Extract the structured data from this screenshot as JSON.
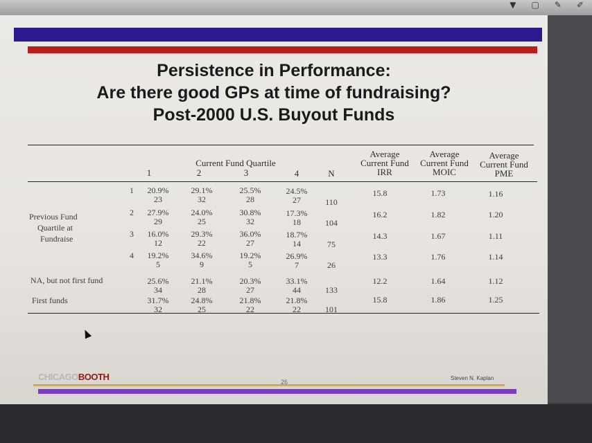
{
  "title": {
    "line1": "Persistence in Performance:",
    "line2": "Are there good GPs at time of fundraising?",
    "line3": "Post-2000 U.S. Buyout Funds"
  },
  "header": {
    "current_fund_quartile": "Current Fund Quartile",
    "q1": "1",
    "q2": "2",
    "q3": "3",
    "q4": "4",
    "n": "N",
    "irr": [
      "Average",
      "Current Fund",
      "IRR"
    ],
    "moic": [
      "Average",
      "Current Fund",
      "MOIC"
    ],
    "pme": [
      "Average",
      "Current Fund",
      "PME"
    ]
  },
  "row_group_label": [
    "Previous Fund",
    "Quartile at",
    "Fundraise"
  ],
  "rows": [
    {
      "label": "1",
      "q": [
        "20.9%",
        "29.1%",
        "25.5%",
        "24.5%"
      ],
      "counts": [
        "23",
        "32",
        "28",
        "27"
      ],
      "n": "110",
      "irr": "15.8",
      "moic": "1.73",
      "pme": "1.16"
    },
    {
      "label": "2",
      "q": [
        "27.9%",
        "24.0%",
        "30.8%",
        "17.3%"
      ],
      "counts": [
        "29",
        "25",
        "32",
        "18"
      ],
      "n": "104",
      "irr": "16.2",
      "moic": "1.82",
      "pme": "1.20"
    },
    {
      "label": "3",
      "q": [
        "16.0%",
        "29.3%",
        "36.0%",
        "18.7%"
      ],
      "counts": [
        "12",
        "22",
        "27",
        "14"
      ],
      "n": "75",
      "irr": "14.3",
      "moic": "1.67",
      "pme": "1.11"
    },
    {
      "label": "4",
      "q": [
        "19.2%",
        "34.6%",
        "19.2%",
        "26.9%"
      ],
      "counts": [
        "5",
        "9",
        "5",
        "7"
      ],
      "n": "26",
      "irr": "13.3",
      "moic": "1.76",
      "pme": "1.14"
    },
    {
      "label": "NA, but not first fund",
      "q": [
        "25.6%",
        "21.1%",
        "20.3%",
        "33.1%"
      ],
      "counts": [
        "34",
        "28",
        "27",
        "44"
      ],
      "n": "133",
      "irr": "12.2",
      "moic": "1.64",
      "pme": "1.12"
    },
    {
      "label": "First funds",
      "q": [
        "31.7%",
        "24.8%",
        "21.8%",
        "21.8%"
      ],
      "counts": [
        "32",
        "25",
        "22",
        "22"
      ],
      "n": "101",
      "irr": "15.8",
      "moic": "1.86",
      "pme": "1.25"
    }
  ],
  "footer": {
    "logo_part1": "CHICAGO",
    "logo_part2": "BOOTH",
    "page_number": "26",
    "author": "Steven N. Kaplan"
  },
  "colors": {
    "blue_bar": "#2a1b8f",
    "red_bar": "#b81f1c",
    "gold_line": "#d5a94a",
    "purple_line": "#7a3fb8"
  }
}
